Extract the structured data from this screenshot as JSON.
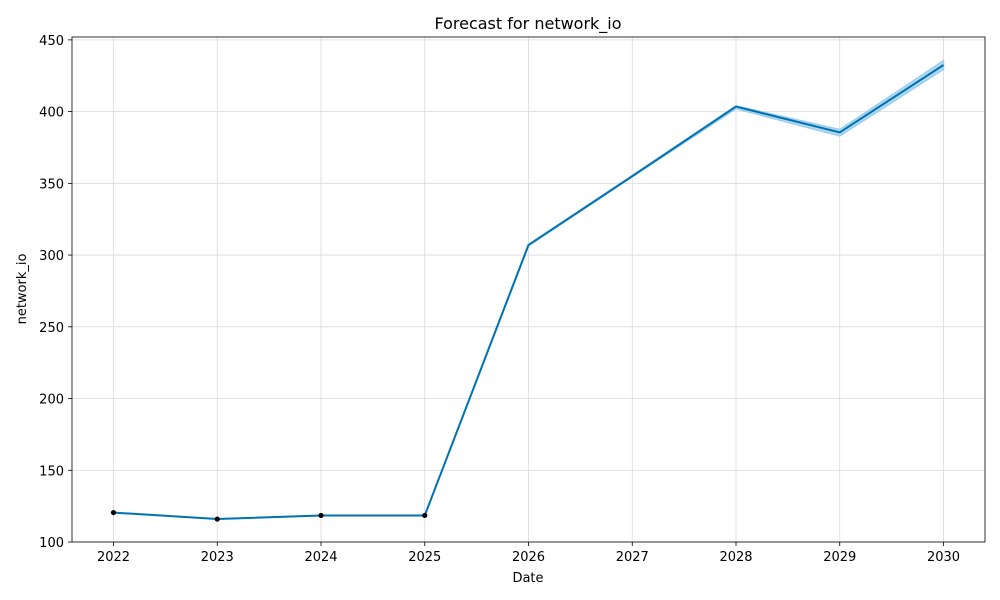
{
  "chart_data": {
    "type": "line",
    "title": "Forecast for network_io",
    "xlabel": "Date",
    "ylabel": "network_io",
    "x": [
      "2022",
      "2023",
      "2024",
      "2025",
      "2026",
      "2027",
      "2028",
      "2029",
      "2030"
    ],
    "xlim": [
      2021.6,
      2030.4
    ],
    "ylim": [
      100,
      452
    ],
    "yticks": [
      100,
      150,
      200,
      250,
      300,
      350,
      400,
      450
    ],
    "grid": true,
    "colors": {
      "forecast": "#0072B2",
      "interval": "#9fcfee",
      "observed": "#000000"
    },
    "series": [
      {
        "role": "forecast",
        "values": [
          120.5,
          116.0,
          118.5,
          118.5,
          307.0,
          355.0,
          403.5,
          385.5,
          432.5
        ]
      },
      {
        "role": "forecast-interval",
        "lower": [
          120.5,
          116.0,
          118.5,
          118.5,
          306.5,
          354.5,
          402.0,
          383.0,
          429.5
        ],
        "upper": [
          120.5,
          116.0,
          118.5,
          118.5,
          307.5,
          355.5,
          404.0,
          387.5,
          435.5
        ]
      },
      {
        "role": "observed",
        "x": [
          "2022",
          "2023",
          "2024",
          "2025"
        ],
        "values": [
          120.5,
          116.0,
          118.5,
          118.5
        ]
      }
    ]
  }
}
